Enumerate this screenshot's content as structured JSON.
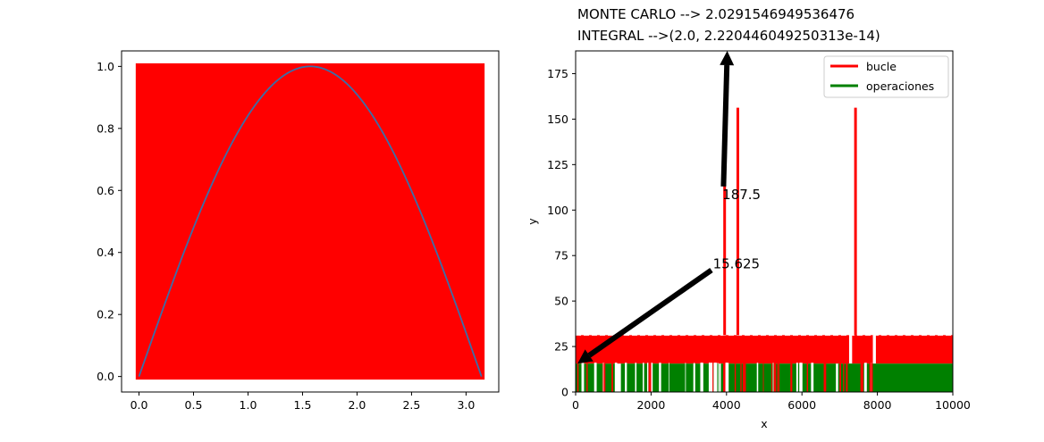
{
  "chart_data": [
    {
      "type": "area",
      "title": "",
      "xlabel": "",
      "ylabel": "",
      "xlim": [
        -0.16,
        3.3
      ],
      "ylim": [
        -0.05,
        1.05
      ],
      "xticks": [
        "0.0",
        "0.5",
        "1.0",
        "1.5",
        "2.0",
        "2.5",
        "3.0"
      ],
      "yticks": [
        "0.0",
        "0.2",
        "0.4",
        "0.6",
        "0.8",
        "1.0"
      ],
      "fill_region": {
        "x": [
          -0.03,
          3.17
        ],
        "y": [
          -0.01,
          1.01
        ],
        "color": "#ff0000"
      },
      "series": [
        {
          "function": "sin(x)",
          "x_range": [
            0,
            3.14159
          ],
          "color": "#3b6fa8"
        }
      ],
      "grid": false
    },
    {
      "type": "line",
      "title_lines": [
        "MONTE CARLO --> 2.0291546949536476",
        "INTEGRAL -->(2.0, 2.220446049250313e-14)"
      ],
      "xlabel": "x",
      "ylabel": "y",
      "xlim": [
        0,
        10000
      ],
      "ylim": [
        0,
        187.5
      ],
      "xticks": [
        "0",
        "2000",
        "4000",
        "6000",
        "8000",
        "10000"
      ],
      "yticks": [
        "0",
        "25",
        "50",
        "75",
        "100",
        "125",
        "150",
        "175"
      ],
      "series": [
        {
          "name": "bucle",
          "color": "#ff0000",
          "baseline_band": [
            15.6,
            31.25
          ],
          "spikes": [
            {
              "x": 3950,
              "y": 156.25
            },
            {
              "x": 4300,
              "y": 156.25
            },
            {
              "x": 7420,
              "y": 156.25
            }
          ]
        },
        {
          "name": "operaciones",
          "color": "#008000",
          "baseline_band": [
            0,
            15.6
          ]
        }
      ],
      "annotations": [
        {
          "text": "187.5",
          "arrow_to": {
            "x": 4000,
            "y": 187.5
          },
          "text_at": {
            "x": 4000,
            "y": 110
          }
        },
        {
          "text": "15.625",
          "arrow_to": {
            "x": 0,
            "y": 15.625
          },
          "text_at": {
            "x": 3700,
            "y": 70
          }
        }
      ],
      "legend_position": "top-right",
      "grid": false
    }
  ]
}
